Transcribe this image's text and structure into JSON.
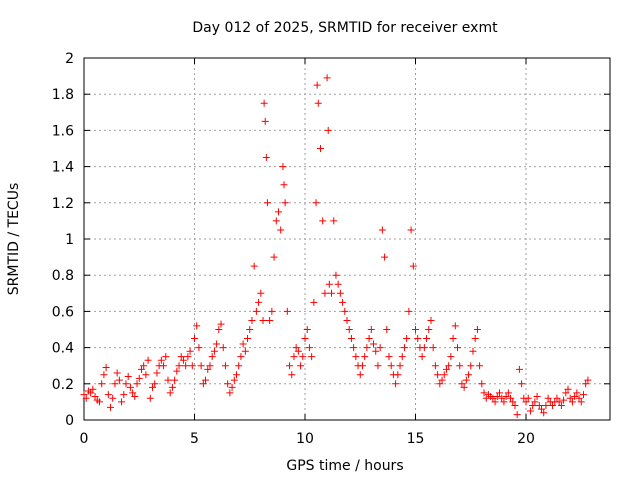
{
  "chart_data": {
    "type": "scatter",
    "title": "Day 012 of 2025, SRMTID for receiver exmt",
    "xlabel": "GPS time / hours",
    "ylabel": "SRMTID / TECUs",
    "xlim": [
      0,
      23.8
    ],
    "ylim": [
      0,
      2
    ],
    "xticks": [
      0,
      5,
      10,
      15,
      20
    ],
    "yticks": [
      0,
      0.2,
      0.4,
      0.6,
      0.8,
      1,
      1.2,
      1.4,
      1.6,
      1.8,
      2
    ],
    "ytick_labels": [
      "0",
      "0.2",
      "0.4",
      "0.6",
      "0.8",
      "1",
      "1.2",
      "1.4",
      "1.6",
      "1.8",
      "2"
    ],
    "grid": true,
    "marker": "+",
    "color": "#ff0000",
    "series": [
      {
        "name": "SRMTID",
        "points": [
          [
            0.0,
            0.14
          ],
          [
            0.1,
            0.12
          ],
          [
            0.2,
            0.16
          ],
          [
            0.3,
            0.15
          ],
          [
            0.4,
            0.17
          ],
          [
            0.5,
            0.13
          ],
          [
            0.6,
            0.11
          ],
          [
            0.7,
            0.1
          ],
          [
            0.8,
            0.2
          ],
          [
            0.9,
            0.25
          ],
          [
            1.0,
            0.29
          ],
          [
            1.1,
            0.14
          ],
          [
            1.2,
            0.07
          ],
          [
            1.3,
            0.12
          ],
          [
            1.4,
            0.2
          ],
          [
            1.5,
            0.26
          ],
          [
            1.6,
            0.22
          ],
          [
            1.7,
            0.1
          ],
          [
            1.8,
            0.14
          ],
          [
            1.9,
            0.2
          ],
          [
            2.0,
            0.24
          ],
          [
            2.1,
            0.18
          ],
          [
            2.2,
            0.15
          ],
          [
            2.3,
            0.13
          ],
          [
            2.4,
            0.2
          ],
          [
            2.5,
            0.23
          ],
          [
            2.6,
            0.28
          ],
          [
            2.7,
            0.3
          ],
          [
            2.8,
            0.25
          ],
          [
            2.9,
            0.33
          ],
          [
            3.0,
            0.12
          ],
          [
            3.1,
            0.18
          ],
          [
            3.2,
            0.2
          ],
          [
            3.3,
            0.26
          ],
          [
            3.4,
            0.3
          ],
          [
            3.5,
            0.33
          ],
          [
            3.6,
            0.3
          ],
          [
            3.7,
            0.35
          ],
          [
            3.8,
            0.22
          ],
          [
            3.9,
            0.15
          ],
          [
            4.0,
            0.18
          ],
          [
            4.1,
            0.22
          ],
          [
            4.2,
            0.27
          ],
          [
            4.3,
            0.3
          ],
          [
            4.4,
            0.35
          ],
          [
            4.5,
            0.33
          ],
          [
            4.6,
            0.3
          ],
          [
            4.7,
            0.35
          ],
          [
            4.8,
            0.38
          ],
          [
            4.9,
            0.3
          ],
          [
            5.0,
            0.45
          ],
          [
            5.1,
            0.52
          ],
          [
            5.2,
            0.4
          ],
          [
            5.3,
            0.3
          ],
          [
            5.4,
            0.2
          ],
          [
            5.5,
            0.22
          ],
          [
            5.6,
            0.28
          ],
          [
            5.7,
            0.3
          ],
          [
            5.8,
            0.35
          ],
          [
            5.9,
            0.38
          ],
          [
            6.0,
            0.42
          ],
          [
            6.1,
            0.5
          ],
          [
            6.2,
            0.53
          ],
          [
            6.3,
            0.4
          ],
          [
            6.4,
            0.3
          ],
          [
            6.5,
            0.2
          ],
          [
            6.6,
            0.15
          ],
          [
            6.7,
            0.18
          ],
          [
            6.8,
            0.22
          ],
          [
            6.9,
            0.25
          ],
          [
            7.0,
            0.3
          ],
          [
            7.1,
            0.35
          ],
          [
            7.2,
            0.42
          ],
          [
            7.3,
            0.38
          ],
          [
            7.4,
            0.45
          ],
          [
            7.5,
            0.5
          ],
          [
            7.6,
            0.55
          ],
          [
            7.7,
            0.85
          ],
          [
            7.8,
            0.6
          ],
          [
            7.9,
            0.65
          ],
          [
            8.0,
            0.7
          ],
          [
            8.1,
            0.55
          ],
          [
            8.15,
            1.75
          ],
          [
            8.2,
            1.65
          ],
          [
            8.25,
            1.45
          ],
          [
            8.3,
            1.2
          ],
          [
            8.4,
            0.55
          ],
          [
            8.5,
            0.6
          ],
          [
            8.6,
            0.9
          ],
          [
            8.7,
            1.1
          ],
          [
            8.8,
            1.15
          ],
          [
            8.9,
            1.05
          ],
          [
            9.0,
            1.4
          ],
          [
            9.05,
            1.3
          ],
          [
            9.1,
            1.2
          ],
          [
            9.2,
            0.6
          ],
          [
            9.3,
            0.3
          ],
          [
            9.4,
            0.25
          ],
          [
            9.5,
            0.35
          ],
          [
            9.6,
            0.4
          ],
          [
            9.7,
            0.38
          ],
          [
            9.8,
            0.3
          ],
          [
            9.9,
            0.35
          ],
          [
            10.0,
            0.45
          ],
          [
            10.1,
            0.5
          ],
          [
            10.2,
            0.4
          ],
          [
            10.3,
            0.35
          ],
          [
            10.4,
            0.65
          ],
          [
            10.5,
            1.2
          ],
          [
            10.55,
            1.85
          ],
          [
            10.6,
            1.75
          ],
          [
            10.7,
            1.5
          ],
          [
            10.8,
            1.1
          ],
          [
            10.9,
            0.7
          ],
          [
            11.0,
            1.89
          ],
          [
            11.05,
            1.6
          ],
          [
            11.1,
            0.75
          ],
          [
            11.2,
            0.7
          ],
          [
            11.3,
            1.1
          ],
          [
            11.4,
            0.8
          ],
          [
            11.5,
            0.75
          ],
          [
            11.6,
            0.7
          ],
          [
            11.7,
            0.65
          ],
          [
            11.8,
            0.6
          ],
          [
            11.9,
            0.55
          ],
          [
            12.0,
            0.5
          ],
          [
            12.1,
            0.45
          ],
          [
            12.2,
            0.4
          ],
          [
            12.3,
            0.35
          ],
          [
            12.4,
            0.3
          ],
          [
            12.5,
            0.25
          ],
          [
            12.6,
            0.3
          ],
          [
            12.7,
            0.35
          ],
          [
            12.8,
            0.4
          ],
          [
            12.9,
            0.45
          ],
          [
            13.0,
            0.5
          ],
          [
            13.1,
            0.42
          ],
          [
            13.2,
            0.38
          ],
          [
            13.3,
            0.3
          ],
          [
            13.4,
            0.4
          ],
          [
            13.5,
            1.05
          ],
          [
            13.6,
            0.9
          ],
          [
            13.7,
            0.5
          ],
          [
            13.8,
            0.35
          ],
          [
            13.9,
            0.3
          ],
          [
            14.0,
            0.25
          ],
          [
            14.1,
            0.2
          ],
          [
            14.2,
            0.25
          ],
          [
            14.3,
            0.3
          ],
          [
            14.4,
            0.35
          ],
          [
            14.5,
            0.4
          ],
          [
            14.6,
            0.45
          ],
          [
            14.7,
            0.6
          ],
          [
            14.8,
            1.05
          ],
          [
            14.9,
            0.85
          ],
          [
            15.0,
            0.5
          ],
          [
            15.1,
            0.45
          ],
          [
            15.2,
            0.4
          ],
          [
            15.3,
            0.35
          ],
          [
            15.4,
            0.4
          ],
          [
            15.5,
            0.45
          ],
          [
            15.6,
            0.5
          ],
          [
            15.7,
            0.55
          ],
          [
            15.8,
            0.4
          ],
          [
            15.9,
            0.3
          ],
          [
            16.0,
            0.25
          ],
          [
            16.1,
            0.2
          ],
          [
            16.2,
            0.22
          ],
          [
            16.3,
            0.25
          ],
          [
            16.4,
            0.28
          ],
          [
            16.5,
            0.3
          ],
          [
            16.6,
            0.35
          ],
          [
            16.7,
            0.45
          ],
          [
            16.8,
            0.52
          ],
          [
            16.9,
            0.4
          ],
          [
            17.0,
            0.3
          ],
          [
            17.1,
            0.2
          ],
          [
            17.2,
            0.18
          ],
          [
            17.3,
            0.22
          ],
          [
            17.4,
            0.25
          ],
          [
            17.5,
            0.3
          ],
          [
            17.6,
            0.38
          ],
          [
            17.7,
            0.45
          ],
          [
            17.8,
            0.5
          ],
          [
            17.9,
            0.3
          ],
          [
            18.0,
            0.2
          ],
          [
            18.1,
            0.15
          ],
          [
            18.2,
            0.12
          ],
          [
            18.3,
            0.14
          ],
          [
            18.4,
            0.13
          ],
          [
            18.5,
            0.12
          ],
          [
            18.6,
            0.1
          ],
          [
            18.7,
            0.13
          ],
          [
            18.8,
            0.15
          ],
          [
            18.9,
            0.12
          ],
          [
            19.0,
            0.1
          ],
          [
            19.1,
            0.13
          ],
          [
            19.2,
            0.15
          ],
          [
            19.3,
            0.12
          ],
          [
            19.4,
            0.1
          ],
          [
            19.5,
            0.08
          ],
          [
            19.6,
            0.03
          ],
          [
            19.7,
            0.28
          ],
          [
            19.8,
            0.2
          ],
          [
            19.9,
            0.12
          ],
          [
            20.0,
            0.1
          ],
          [
            20.1,
            0.12
          ],
          [
            20.2,
            0.05
          ],
          [
            20.3,
            0.08
          ],
          [
            20.4,
            0.1
          ],
          [
            20.5,
            0.13
          ],
          [
            20.6,
            0.08
          ],
          [
            20.7,
            0.06
          ],
          [
            20.8,
            0.04
          ],
          [
            20.9,
            0.08
          ],
          [
            21.0,
            0.12
          ],
          [
            21.1,
            0.1
          ],
          [
            21.2,
            0.08
          ],
          [
            21.3,
            0.1
          ],
          [
            21.4,
            0.12
          ],
          [
            21.5,
            0.1
          ],
          [
            21.6,
            0.08
          ],
          [
            21.7,
            0.11
          ],
          [
            21.8,
            0.15
          ],
          [
            21.9,
            0.17
          ],
          [
            22.0,
            0.12
          ],
          [
            22.1,
            0.1
          ],
          [
            22.2,
            0.13
          ],
          [
            22.3,
            0.15
          ],
          [
            22.4,
            0.12
          ],
          [
            22.5,
            0.1
          ],
          [
            22.6,
            0.14
          ],
          [
            22.7,
            0.2
          ],
          [
            22.8,
            0.22
          ]
        ]
      }
    ]
  }
}
